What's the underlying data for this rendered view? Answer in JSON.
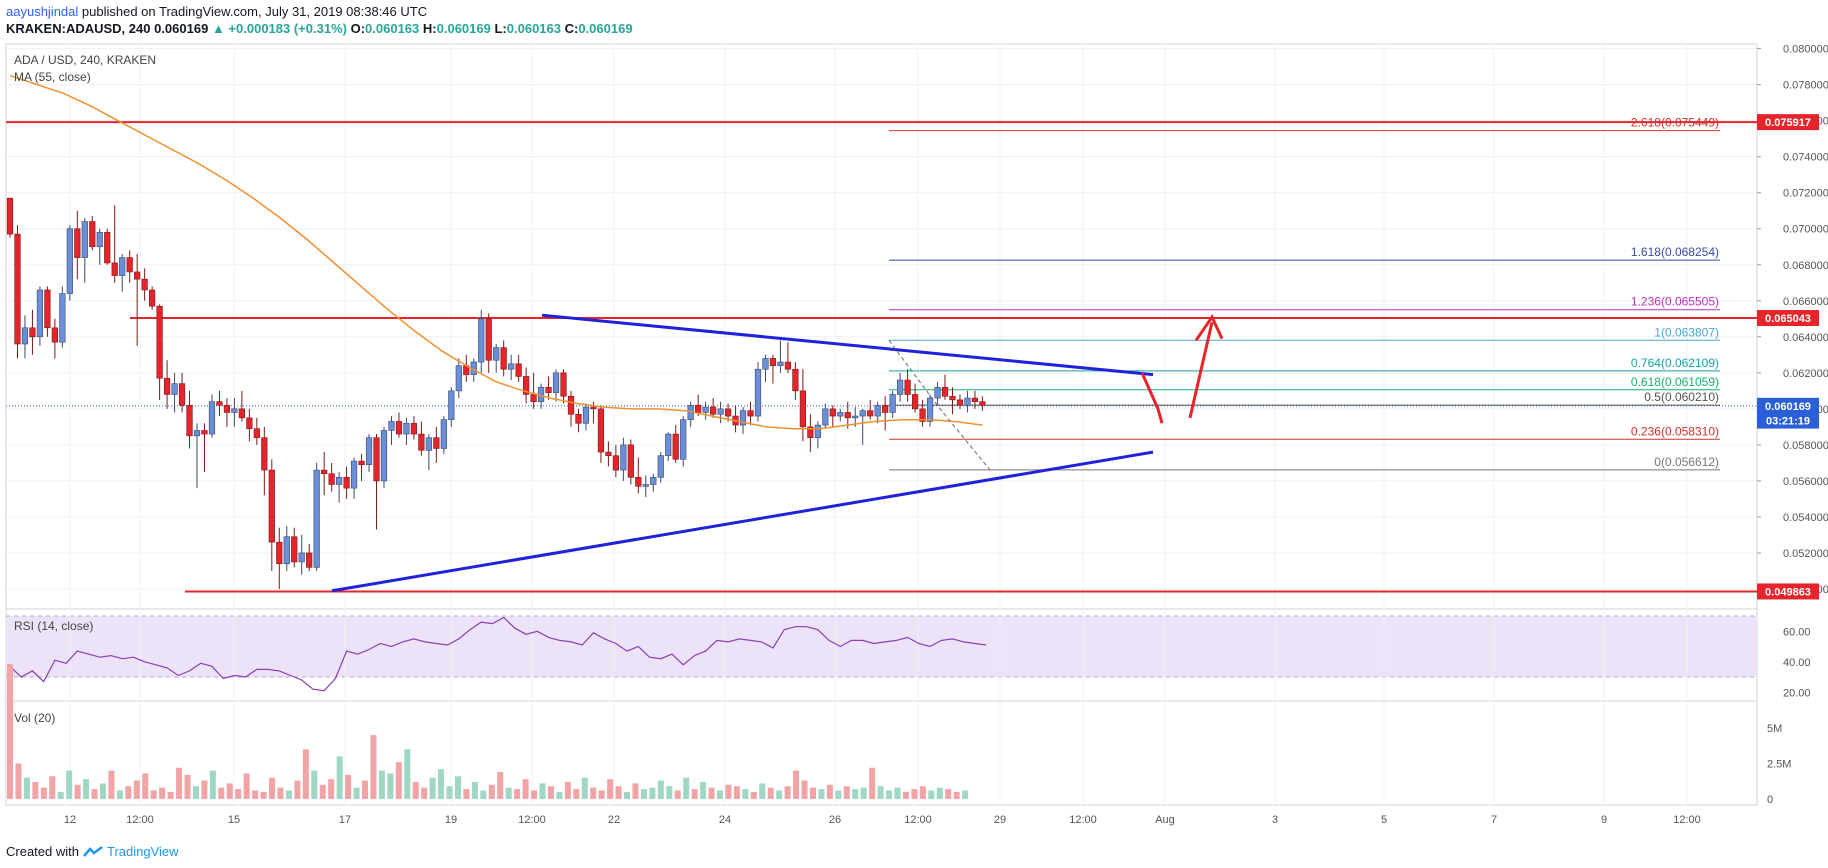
{
  "header": {
    "user": "aayushjindal",
    "published": " published on TradingView.com, July 31, 2019 08:38:46 UTC",
    "symbol": "KRAKEN:ADAUSD, 240",
    "last": "0.060169",
    "change": "▲ +0.000183 (+0.31%)",
    "o_label": "O:",
    "o": "0.060163",
    "h_label": "H:",
    "h": "0.060169",
    "l_label": "L:",
    "l": "0.060163",
    "c_label": "C:",
    "c": "0.060169"
  },
  "legend": {
    "pair": "ADA / USD, 240, KRAKEN",
    "ma": "MA (55, close)",
    "rsi": "RSI (14, close)",
    "vol": "Vol (20)"
  },
  "footer": {
    "created": "Created with",
    "brand": "TradingView"
  },
  "colors": {
    "up": "#6a8fd8",
    "down": "#e5252b",
    "ma": "#f0902e",
    "trend": "#1f22d8",
    "support": "#e5252b",
    "rsi": "#8a3fb8",
    "volUp": "#9ed8c3",
    "volDown": "#f2a3a6"
  },
  "chart_data": {
    "type": "candlestick",
    "price_ticks": [
      "0.080000",
      "0.078000",
      "0.076000",
      "0.074000",
      "0.072000",
      "0.070000",
      "0.068000",
      "0.066000",
      "0.064000",
      "0.062000",
      "0.060000",
      "0.058000",
      "0.056000",
      "0.054000",
      "0.052000",
      "0.050000"
    ],
    "price_tags": [
      {
        "label": "0.075917",
        "value": 0.075917,
        "color": "#e5252b"
      },
      {
        "label": "0.065043",
        "value": 0.065043,
        "color": "#e5252b"
      },
      {
        "label": "0.060169",
        "value": 0.060169,
        "color": "#2a5fd8"
      },
      {
        "label": "03:21:19",
        "value": 0.05935,
        "color": "#2a5fd8"
      },
      {
        "label": "0.049863",
        "value": 0.049863,
        "color": "#e5252b"
      }
    ],
    "x_ticks": [
      "12",
      "12:00",
      "15",
      "17",
      "19",
      "12:00",
      "22",
      "24",
      "26",
      "12:00",
      "29",
      "12:00",
      "Aug",
      "3",
      "5",
      "7",
      "9",
      "12:00"
    ],
    "fib_levels": [
      {
        "label": "2.618(0.075449)",
        "value": 0.075449,
        "color": "#d2322d"
      },
      {
        "label": "1.618(0.068254)",
        "value": 0.068254,
        "color": "#3949ab"
      },
      {
        "label": "1.236(0.065505)",
        "value": 0.065505,
        "color": "#c02fc0"
      },
      {
        "label": "1(0.063807)",
        "value": 0.063807,
        "color": "#4ba6d6"
      },
      {
        "label": "0.764(0.062109)",
        "value": 0.062109,
        "color": "#17a2a2"
      },
      {
        "label": "0.618(0.061059)",
        "value": 0.061059,
        "color": "#1fae6b"
      },
      {
        "label": "0.5(0.060210)",
        "value": 0.06021,
        "color": "#555555"
      },
      {
        "label": "0.236(0.058310)",
        "value": 0.05831,
        "color": "#d2322d"
      },
      {
        "label": "0(0.056612)",
        "value": 0.056612,
        "color": "#777777"
      }
    ],
    "rsi_ticks": [
      "60.00",
      "40.00",
      "20.00"
    ],
    "vol_ticks": [
      "5M",
      "2.5M",
      "0"
    ],
    "candles": [
      [
        0.0717,
        0.0717,
        0.0695,
        0.0697
      ],
      [
        0.0697,
        0.0702,
        0.0628,
        0.0636
      ],
      [
        0.0636,
        0.0652,
        0.0628,
        0.0645
      ],
      [
        0.0645,
        0.0655,
        0.063,
        0.064
      ],
      [
        0.064,
        0.0668,
        0.0635,
        0.0666
      ],
      [
        0.0666,
        0.0668,
        0.064,
        0.0645
      ],
      [
        0.0645,
        0.065,
        0.0628,
        0.0637
      ],
      [
        0.0637,
        0.0668,
        0.0634,
        0.0664
      ],
      [
        0.0664,
        0.0702,
        0.066,
        0.07
      ],
      [
        0.07,
        0.071,
        0.0672,
        0.0684
      ],
      [
        0.0684,
        0.0706,
        0.067,
        0.0704
      ],
      [
        0.0704,
        0.0707,
        0.0688,
        0.069
      ],
      [
        0.069,
        0.07,
        0.068,
        0.0698
      ],
      [
        0.0698,
        0.07,
        0.068,
        0.0681
      ],
      [
        0.0681,
        0.0713,
        0.067,
        0.0674
      ],
      [
        0.0674,
        0.0686,
        0.0665,
        0.0684
      ],
      [
        0.0684,
        0.0688,
        0.067,
        0.0676
      ],
      [
        0.0676,
        0.0686,
        0.0635,
        0.0672
      ],
      [
        0.0672,
        0.0678,
        0.066,
        0.0666
      ],
      [
        0.0666,
        0.0668,
        0.0655,
        0.0657
      ],
      [
        0.0657,
        0.0658,
        0.0605,
        0.0617
      ],
      [
        0.0617,
        0.0627,
        0.06,
        0.0608
      ],
      [
        0.0608,
        0.062,
        0.0598,
        0.0614
      ],
      [
        0.0614,
        0.062,
        0.0598,
        0.0602
      ],
      [
        0.0602,
        0.061,
        0.0578,
        0.0585
      ],
      [
        0.0585,
        0.0592,
        0.0556,
        0.0588
      ],
      [
        0.0588,
        0.0592,
        0.0565,
        0.0586
      ],
      [
        0.0586,
        0.0608,
        0.0584,
        0.0604
      ],
      [
        0.0604,
        0.061,
        0.0596,
        0.0602
      ],
      [
        0.0602,
        0.0606,
        0.059,
        0.0598
      ],
      [
        0.0598,
        0.0606,
        0.059,
        0.06
      ],
      [
        0.06,
        0.061,
        0.0593,
        0.0595
      ],
      [
        0.0595,
        0.06,
        0.0582,
        0.0589
      ],
      [
        0.0589,
        0.0595,
        0.058,
        0.0584
      ],
      [
        0.0584,
        0.059,
        0.0552,
        0.0566
      ],
      [
        0.0566,
        0.0572,
        0.051,
        0.0526
      ],
      [
        0.0526,
        0.0534,
        0.05,
        0.0514
      ],
      [
        0.0514,
        0.0535,
        0.051,
        0.0529
      ],
      [
        0.0529,
        0.0534,
        0.0512,
        0.0515
      ],
      [
        0.0515,
        0.053,
        0.0508,
        0.052
      ],
      [
        0.052,
        0.0525,
        0.051,
        0.0512
      ],
      [
        0.0512,
        0.057,
        0.051,
        0.0566
      ],
      [
        0.0566,
        0.0576,
        0.0552,
        0.0564
      ],
      [
        0.0564,
        0.057,
        0.0554,
        0.0558
      ],
      [
        0.0558,
        0.0565,
        0.0548,
        0.0562
      ],
      [
        0.0562,
        0.0568,
        0.055,
        0.0556
      ],
      [
        0.0556,
        0.0573,
        0.055,
        0.0571
      ],
      [
        0.0571,
        0.0575,
        0.056,
        0.0569
      ],
      [
        0.0569,
        0.0586,
        0.0565,
        0.0584
      ],
      [
        0.0584,
        0.0586,
        0.0533,
        0.056
      ],
      [
        0.056,
        0.059,
        0.0556,
        0.0588
      ],
      [
        0.0588,
        0.0596,
        0.058,
        0.0593
      ],
      [
        0.0593,
        0.0598,
        0.0584,
        0.0586
      ],
      [
        0.0586,
        0.0595,
        0.058,
        0.0592
      ],
      [
        0.0592,
        0.0596,
        0.0583,
        0.0586
      ],
      [
        0.0586,
        0.0593,
        0.0574,
        0.0577
      ],
      [
        0.0577,
        0.0586,
        0.0566,
        0.0584
      ],
      [
        0.0584,
        0.059,
        0.057,
        0.0578
      ],
      [
        0.0578,
        0.0596,
        0.0575,
        0.0594
      ],
      [
        0.0594,
        0.0612,
        0.059,
        0.061
      ],
      [
        0.061,
        0.0628,
        0.0606,
        0.0624
      ],
      [
        0.0624,
        0.063,
        0.0615,
        0.0619
      ],
      [
        0.0619,
        0.0628,
        0.0615,
        0.0626
      ],
      [
        0.0626,
        0.0655,
        0.062,
        0.065
      ],
      [
        0.065,
        0.0653,
        0.062,
        0.0627
      ],
      [
        0.0627,
        0.0636,
        0.062,
        0.0634
      ],
      [
        0.0634,
        0.0638,
        0.0618,
        0.0622
      ],
      [
        0.0622,
        0.063,
        0.0616,
        0.0625
      ],
      [
        0.0625,
        0.063,
        0.0615,
        0.0618
      ],
      [
        0.0618,
        0.0623,
        0.0603,
        0.0608
      ],
      [
        0.0608,
        0.062,
        0.06,
        0.0604
      ],
      [
        0.0604,
        0.0614,
        0.06,
        0.0612
      ],
      [
        0.0612,
        0.0618,
        0.0605,
        0.0609
      ],
      [
        0.0609,
        0.0622,
        0.0604,
        0.062
      ],
      [
        0.062,
        0.0622,
        0.0603,
        0.0607
      ],
      [
        0.0607,
        0.061,
        0.059,
        0.0597
      ],
      [
        0.0597,
        0.06,
        0.0587,
        0.0592
      ],
      [
        0.0592,
        0.0603,
        0.0588,
        0.0601
      ],
      [
        0.0601,
        0.0604,
        0.0592,
        0.06
      ],
      [
        0.06,
        0.0602,
        0.057,
        0.0576
      ],
      [
        0.0576,
        0.0582,
        0.0568,
        0.0574
      ],
      [
        0.0574,
        0.058,
        0.0562,
        0.0566
      ],
      [
        0.0566,
        0.0584,
        0.056,
        0.058
      ],
      [
        0.058,
        0.0583,
        0.0558,
        0.0562
      ],
      [
        0.0562,
        0.0573,
        0.0553,
        0.0557
      ],
      [
        0.0557,
        0.0563,
        0.0551,
        0.0558
      ],
      [
        0.0558,
        0.0564,
        0.0554,
        0.0562
      ],
      [
        0.0562,
        0.0576,
        0.0559,
        0.0574
      ],
      [
        0.0574,
        0.0587,
        0.0571,
        0.0586
      ],
      [
        0.0586,
        0.0591,
        0.057,
        0.0572
      ],
      [
        0.0572,
        0.0596,
        0.0568,
        0.0594
      ],
      [
        0.0594,
        0.0604,
        0.059,
        0.0602
      ],
      [
        0.0602,
        0.0608,
        0.0596,
        0.0598
      ],
      [
        0.0598,
        0.0604,
        0.0594,
        0.0601
      ],
      [
        0.0601,
        0.0606,
        0.0595,
        0.0597
      ],
      [
        0.0597,
        0.0604,
        0.0592,
        0.06
      ],
      [
        0.06,
        0.0603,
        0.0593,
        0.0596
      ],
      [
        0.0596,
        0.0602,
        0.0587,
        0.0591
      ],
      [
        0.0591,
        0.0601,
        0.0586,
        0.0599
      ],
      [
        0.0599,
        0.0604,
        0.0591,
        0.0596
      ],
      [
        0.0596,
        0.0626,
        0.0593,
        0.0622
      ],
      [
        0.0622,
        0.063,
        0.0615,
        0.0628
      ],
      [
        0.0628,
        0.063,
        0.0614,
        0.0624
      ],
      [
        0.0624,
        0.0638,
        0.062,
        0.0626
      ],
      [
        0.0626,
        0.0637,
        0.062,
        0.0622
      ],
      [
        0.0622,
        0.0626,
        0.0605,
        0.061
      ],
      [
        0.061,
        0.0622,
        0.0582,
        0.059
      ],
      [
        0.059,
        0.0597,
        0.0576,
        0.0584
      ],
      [
        0.0584,
        0.0593,
        0.0578,
        0.0591
      ],
      [
        0.0591,
        0.0603,
        0.0589,
        0.06
      ],
      [
        0.06,
        0.0602,
        0.059,
        0.0596
      ],
      [
        0.0596,
        0.06,
        0.0593,
        0.0598
      ],
      [
        0.0598,
        0.0604,
        0.0589,
        0.0595
      ],
      [
        0.0595,
        0.0601,
        0.059,
        0.0596
      ],
      [
        0.0596,
        0.06,
        0.058,
        0.0599
      ],
      [
        0.0599,
        0.0605,
        0.0594,
        0.0596
      ],
      [
        0.0596,
        0.0604,
        0.0592,
        0.0602
      ],
      [
        0.0602,
        0.0607,
        0.0588,
        0.0598
      ],
      [
        0.0598,
        0.061,
        0.0595,
        0.0608
      ],
      [
        0.0608,
        0.062,
        0.0604,
        0.0616
      ],
      [
        0.0616,
        0.0622,
        0.0604,
        0.0608
      ],
      [
        0.0608,
        0.0614,
        0.0598,
        0.06
      ],
      [
        0.06,
        0.0605,
        0.059,
        0.0593
      ],
      [
        0.0593,
        0.0608,
        0.059,
        0.0606
      ],
      [
        0.0606,
        0.0615,
        0.0602,
        0.0612
      ],
      [
        0.0612,
        0.0619,
        0.0605,
        0.0607
      ],
      [
        0.0607,
        0.0612,
        0.0597,
        0.0605
      ],
      [
        0.0605,
        0.0608,
        0.06,
        0.0602
      ],
      [
        0.0602,
        0.061,
        0.0598,
        0.0606
      ],
      [
        0.0606,
        0.061,
        0.06,
        0.0604
      ],
      [
        0.0604,
        0.0607,
        0.0599,
        0.0602
      ]
    ],
    "ma55": [
      0.0785,
      0.078,
      0.0775,
      0.0768,
      0.076,
      0.0752,
      0.0744,
      0.0736,
      0.0727,
      0.0717,
      0.0706,
      0.0694,
      0.0681,
      0.0668,
      0.0655,
      0.0643,
      0.0632,
      0.0623,
      0.0615,
      0.061,
      0.0606,
      0.0603,
      0.0601,
      0.06,
      0.06,
      0.0599,
      0.0596,
      0.0593,
      0.059,
      0.0589,
      0.0589,
      0.0591,
      0.0593,
      0.0594,
      0.0594,
      0.0593,
      0.0591
    ],
    "rsi": [
      37,
      30,
      34,
      27,
      41,
      39,
      47,
      45,
      43,
      44,
      42,
      43,
      40,
      38,
      36,
      31,
      34,
      39,
      37,
      29,
      31,
      30,
      35,
      35,
      34,
      31,
      28,
      22,
      21,
      29,
      47,
      45,
      48,
      52,
      50,
      53,
      55,
      53,
      52,
      51,
      55,
      61,
      66,
      65,
      69,
      62,
      58,
      60,
      56,
      54,
      53,
      51,
      59,
      55,
      52,
      47,
      50,
      43,
      42,
      45,
      38,
      44,
      47,
      54,
      53,
      55,
      54,
      53,
      49,
      61,
      63,
      63,
      61,
      54,
      50,
      54,
      54,
      52,
      53,
      54,
      56,
      52,
      50,
      54,
      55,
      53,
      52,
      51
    ],
    "volume": [
      9.5,
      2.5,
      1.5,
      1.2,
      0.8,
      1.6,
      0.5,
      2.0,
      1.0,
      1.4,
      0.7,
      1.1,
      2.0,
      0.6,
      0.9,
      1.3,
      1.8,
      0.6,
      0.8,
      0.5,
      2.2,
      1.7,
      0.9,
      1.3,
      2.0,
      0.8,
      1.1,
      0.7,
      1.8,
      0.6,
      0.5,
      1.5,
      0.8,
      0.6,
      1.3,
      3.5,
      2.0,
      1.0,
      1.4,
      3.0,
      1.7,
      0.8,
      1.3,
      4.5,
      2.0,
      1.8,
      2.6,
      3.5,
      1.2,
      0.8,
      1.5,
      2.1,
      0.9,
      1.6,
      0.7,
      1.2,
      0.6,
      1.0,
      1.9,
      0.8,
      0.7,
      1.4,
      0.6,
      1.1,
      0.9,
      0.5,
      1.2,
      0.7,
      1.5,
      0.8,
      0.6,
      1.4,
      0.9,
      0.5,
      1.1,
      0.7,
      0.8,
      1.3,
      0.9,
      0.6,
      1.5,
      0.7,
      1.2,
      0.8,
      0.6,
      1.0,
      0.9,
      0.7,
      0.5,
      1.1,
      0.8,
      0.6,
      0.9,
      2.0,
      1.3,
      0.8,
      0.7,
      1.0,
      0.6,
      0.9,
      0.7,
      0.8,
      2.2,
      0.9,
      0.6,
      0.8,
      0.5,
      0.7,
      0.9,
      0.6,
      0.8,
      0.7,
      0.5,
      0.6
    ]
  }
}
